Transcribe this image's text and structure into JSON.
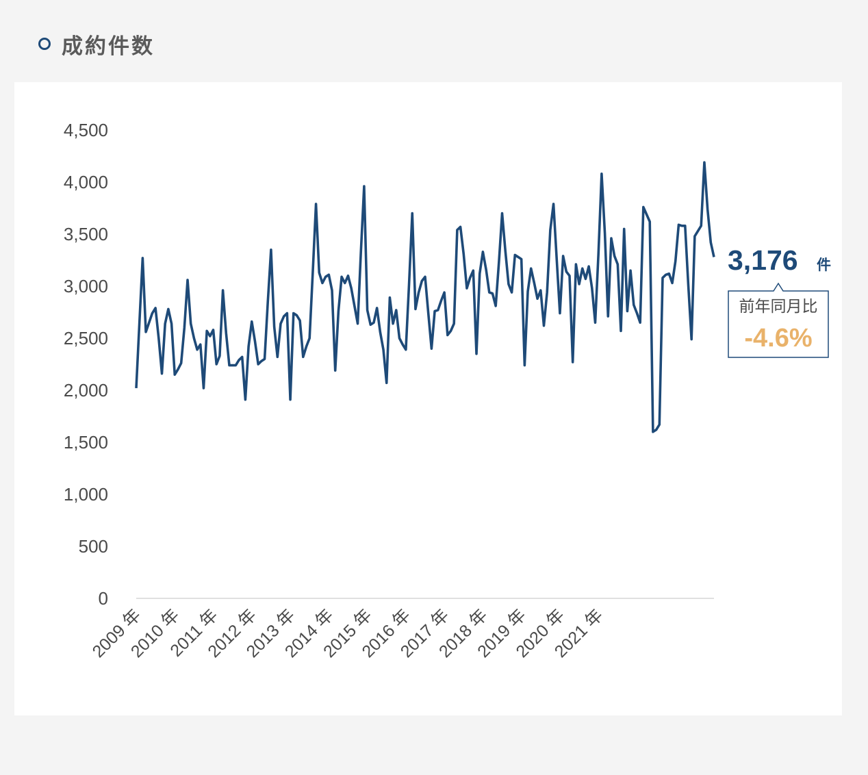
{
  "header": {
    "title": "成約件数"
  },
  "colors": {
    "line": "#1e4a78",
    "accent": "#e9b26a",
    "axis": "#d6d6d6"
  },
  "callout": {
    "value": "3,176",
    "unit": "件",
    "label": "前年同月比",
    "change": "-4.6%"
  },
  "chart_data": {
    "type": "line",
    "title": "成約件数",
    "ylim": [
      0,
      4500
    ],
    "yticks": [
      0,
      500,
      1000,
      1500,
      2000,
      2500,
      3000,
      3500,
      4000,
      4500
    ],
    "ytick_labels": [
      "0",
      "500",
      "1,000",
      "1,500",
      "2,000",
      "2,500",
      "3,000",
      "3,500",
      "4,000",
      "4,500"
    ],
    "xtick_labels": [
      "2009 年",
      "2010 年",
      "2011 年",
      "2012 年",
      "2013 年",
      "2014 年",
      "2015 年",
      "2016 年",
      "2017 年",
      "2018 年",
      "2019 年",
      "2020 年",
      "2021 年"
    ],
    "grid": false,
    "x_start": "2009-01",
    "series": [
      {
        "values": [
          2020,
          2650,
          3270,
          2560,
          2650,
          2740,
          2790,
          2500,
          2160,
          2640,
          2780,
          2640,
          2150,
          2200,
          2260,
          2600,
          3060,
          2640,
          2500,
          2390,
          2440,
          2020,
          2570,
          2520,
          2580,
          2250,
          2330,
          2960,
          2550,
          2240,
          2240,
          2240,
          2290,
          2320,
          1910,
          2420,
          2660,
          2470,
          2250,
          2280,
          2300,
          2850,
          3350,
          2610,
          2320,
          2640,
          2710,
          2740,
          1910,
          2740,
          2720,
          2670,
          2320,
          2420,
          2500,
          3130,
          3790,
          3130,
          3030,
          3090,
          3110,
          2960,
          2190,
          2760,
          3090,
          3030,
          3100,
          2980,
          2810,
          2640,
          3330,
          3960,
          2770,
          2630,
          2650,
          2790,
          2560,
          2390,
          2070,
          2890,
          2640,
          2770,
          2500,
          2440,
          2390,
          3020,
          3700,
          2780,
          2940,
          3050,
          3090,
          2740,
          2400,
          2760,
          2770,
          2860,
          2940,
          2530,
          2570,
          2640,
          3540,
          3570,
          3310,
          2980,
          3080,
          3150,
          2350,
          3120,
          3330,
          3160,
          2940,
          2930,
          2810,
          3230,
          3700,
          3340,
          3020,
          2940,
          3300,
          3280,
          3260,
          2240,
          2950,
          3170,
          3030,
          2880,
          2960,
          2620,
          2940,
          3540,
          3790,
          3260,
          2740,
          3290,
          3140,
          3100,
          2270,
          3210,
          3020,
          3170,
          3070,
          3190,
          2980,
          2650,
          3310,
          4080,
          3510,
          2710,
          3460,
          3290,
          3210,
          2570,
          3550,
          2760,
          3150,
          2820,
          2740,
          2650,
          3760,
          3690,
          3620,
          1600,
          1620,
          1670,
          3080,
          3110,
          3120,
          3030,
          3240,
          3590,
          3580,
          3580,
          3010,
          2490,
          3480,
          3530,
          3580,
          4190,
          3740,
          3420,
          3280
        ]
      }
    ]
  }
}
